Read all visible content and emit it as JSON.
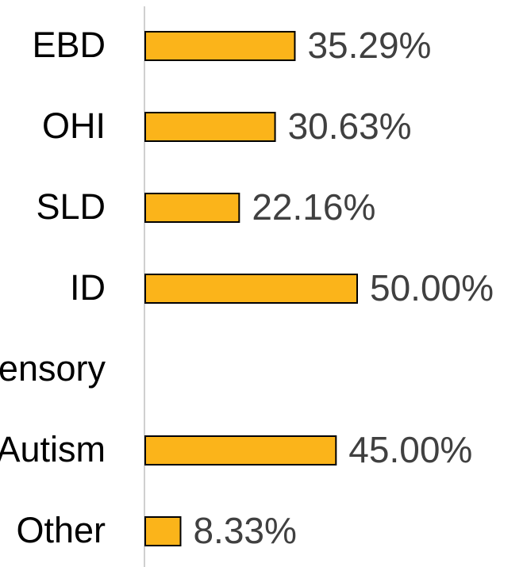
{
  "chart_data": {
    "type": "bar",
    "orientation": "horizontal",
    "categories": [
      "EBD",
      "OHI",
      "SLD",
      "ID",
      "Sensory",
      "Autism",
      "Other"
    ],
    "values": [
      35.29,
      30.63,
      22.16,
      50.0,
      null,
      45.0,
      8.33
    ],
    "value_labels": [
      "35.29%",
      "30.63%",
      "22.16%",
      "50.00%",
      null,
      "45.00%",
      "8.33%"
    ],
    "color": "#fbb41a"
  }
}
